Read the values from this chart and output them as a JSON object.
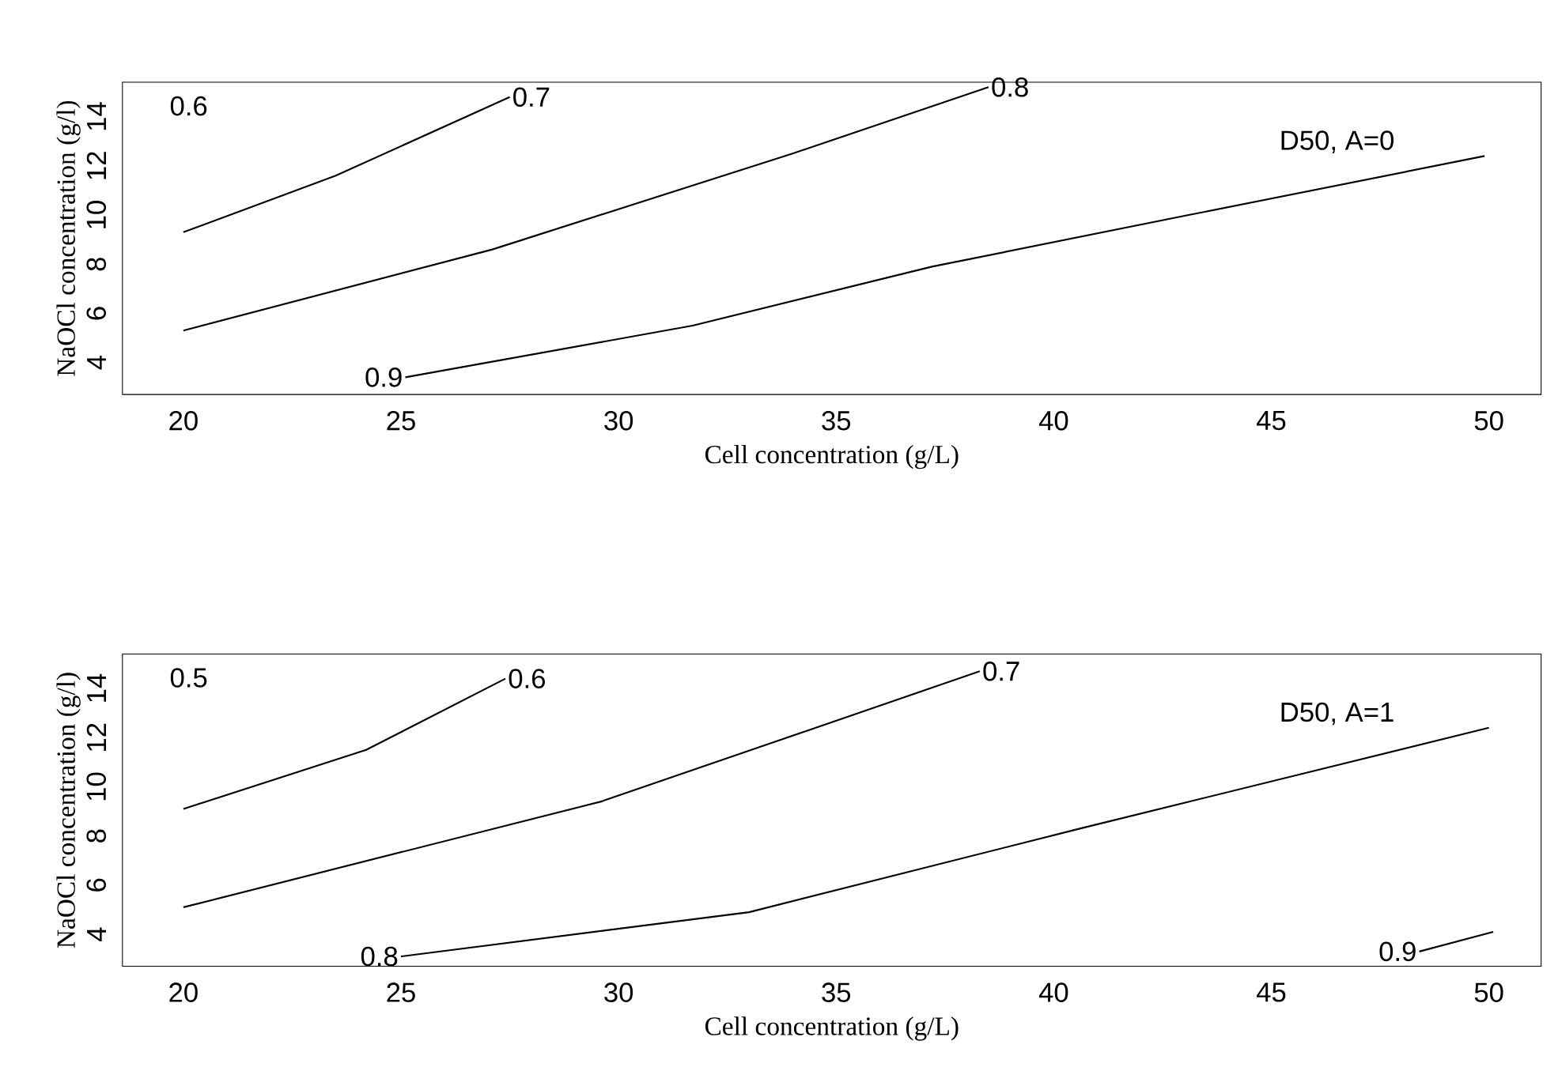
{
  "chart_data": [
    {
      "type": "line",
      "xlabel": "Cell concentration (g/L)",
      "ylabel": "NaOCl concentration (g/l)",
      "xlim": [
        18.6,
        51.2
      ],
      "ylim": [
        2.7,
        15.4
      ],
      "xticks": [
        20,
        25,
        30,
        35,
        40,
        45,
        50
      ],
      "yticks": [
        4,
        6,
        8,
        10,
        12,
        14
      ],
      "legend": false,
      "grid": false,
      "marker": "none",
      "line_style": "solid",
      "annotations": [
        "0.6",
        "D50, A=0"
      ],
      "series": [
        {
          "name": "0.7",
          "color": "#000000",
          "x": [
            20,
            23.5,
            27.5
          ],
          "values": [
            9.3,
            11.6,
            14.8
          ]
        },
        {
          "name": "0.8",
          "color": "#000000",
          "x": [
            20,
            27.1,
            34,
            38.5
          ],
          "values": [
            5.3,
            8.6,
            12.5,
            15.2
          ]
        },
        {
          "name": "0.9",
          "color": "#000000",
          "x": [
            25.1,
            31.7,
            37.2,
            43.1,
            49.9
          ],
          "values": [
            3.4,
            5.5,
            7.9,
            10.0,
            12.4
          ]
        }
      ]
    },
    {
      "type": "line",
      "xlabel": "Cell concentration (g/L)",
      "ylabel": "NaOCl concentration (g/l)",
      "xlim": [
        18.6,
        51.2
      ],
      "ylim": [
        2.7,
        15.4
      ],
      "xticks": [
        20,
        25,
        30,
        35,
        40,
        45,
        50
      ],
      "yticks": [
        4,
        6,
        8,
        10,
        12,
        14
      ],
      "legend": false,
      "grid": false,
      "marker": "none",
      "line_style": "solid",
      "annotations": [
        "0.5",
        "D50, A=1"
      ],
      "series": [
        {
          "name": "0.6",
          "color": "#000000",
          "x": [
            20,
            24.2,
            27.4
          ],
          "values": [
            9.1,
            11.5,
            14.4
          ]
        },
        {
          "name": "0.7",
          "color": "#000000",
          "x": [
            20,
            29.6,
            38.3
          ],
          "values": [
            5.1,
            9.4,
            14.7
          ]
        },
        {
          "name": "0.8",
          "color": "#000000",
          "x": [
            25.0,
            33.0,
            40.6,
            50
          ],
          "values": [
            3.1,
            4.9,
            8.3,
            12.4
          ]
        },
        {
          "name": "0.9",
          "color": "#000000",
          "x": [
            48.4,
            50.1
          ],
          "values": [
            3.3,
            4.1
          ]
        }
      ]
    }
  ]
}
